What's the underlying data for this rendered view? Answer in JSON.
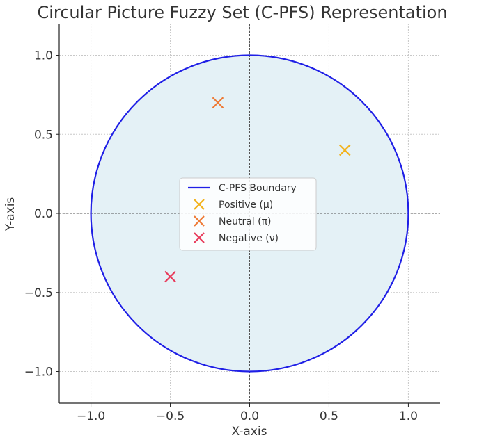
{
  "chart_data": {
    "type": "scatter",
    "title": "Circular Picture Fuzzy Set (C-PFS) Representation",
    "xlabel": "X-axis",
    "ylabel": "Y-axis",
    "xlim": [
      -1.2,
      1.2
    ],
    "ylim": [
      -1.2,
      1.2
    ],
    "xticks": [
      -1.0,
      -0.5,
      0.0,
      0.5,
      1.0
    ],
    "yticks": [
      -1.0,
      -0.5,
      0.0,
      0.5,
      1.0
    ],
    "xtick_labels": [
      "−1.0",
      "−0.5",
      "0.0",
      "0.5",
      "1.0"
    ],
    "ytick_labels": [
      "−1.0",
      "−0.5",
      "0.0",
      "0.5",
      "1.0"
    ],
    "grid": true,
    "legend_position": "center",
    "boundary": {
      "name": "C-PFS Boundary",
      "center": [
        0,
        0
      ],
      "radius": 1.0,
      "color": "#1f1fe6",
      "fill_color": "#e4f1f6"
    },
    "series": [
      {
        "name": "Positive (μ)",
        "marker": "x",
        "color": "#f2b21b",
        "x": [
          0.6
        ],
        "y": [
          0.4
        ]
      },
      {
        "name": "Neutral (π)",
        "marker": "x",
        "color": "#ee7a35",
        "x": [
          -0.2
        ],
        "y": [
          0.7
        ]
      },
      {
        "name": "Negative (ν)",
        "marker": "x",
        "color": "#e83a5a",
        "x": [
          -0.5
        ],
        "y": [
          -0.4
        ]
      }
    ]
  }
}
